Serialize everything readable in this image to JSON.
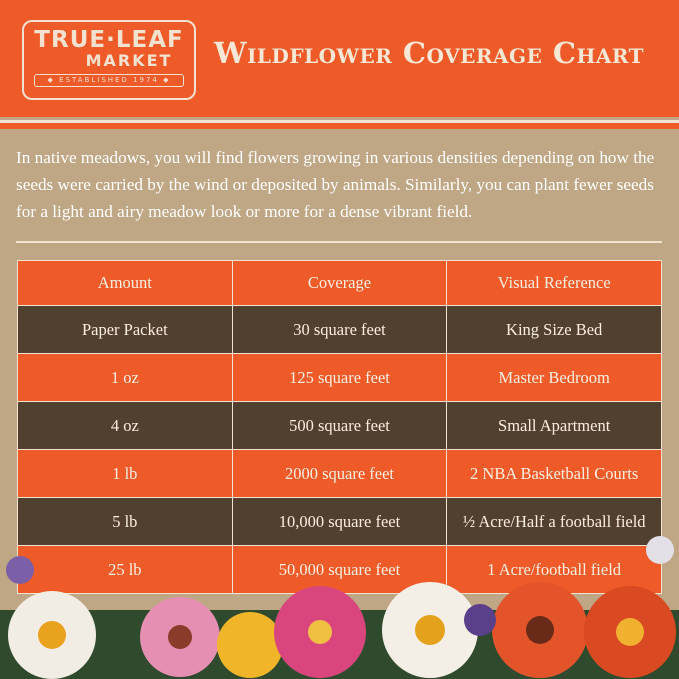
{
  "logo": {
    "line1": "TRUE·LEAF",
    "line2": "MARKET",
    "line3": "◆ ESTABLISHED 1974 ◆"
  },
  "title": "Wildflower Coverage Chart",
  "intro": "In native meadows, you will find flowers growing in various densities depending on how the seeds were carried by the wind or deposited by animals. Similarly, you can plant fewer seeds for a light and airy meadow look or more for a dense vibrant field.",
  "table": {
    "headers": [
      "Amount",
      "Coverage",
      "Visual Reference"
    ],
    "rows": [
      [
        "Paper Packet",
        "30 square feet",
        "King Size Bed"
      ],
      [
        "1 oz",
        "125 square feet",
        "Master Bedroom"
      ],
      [
        "4 oz",
        "500 square feet",
        "Small Apartment"
      ],
      [
        "1 lb",
        "2000 square feet",
        "2 NBA Basketball Courts"
      ],
      [
        "5 lb",
        "10,000 square feet",
        "½ Acre/Half a football field"
      ],
      [
        "25 lb",
        "50,000 square feet",
        "1 Acre/football field"
      ]
    ]
  },
  "colors": {
    "orange": "#ef5a29",
    "brown": "#513f30",
    "tan": "#bfa685",
    "cream": "#f3e2cf"
  }
}
